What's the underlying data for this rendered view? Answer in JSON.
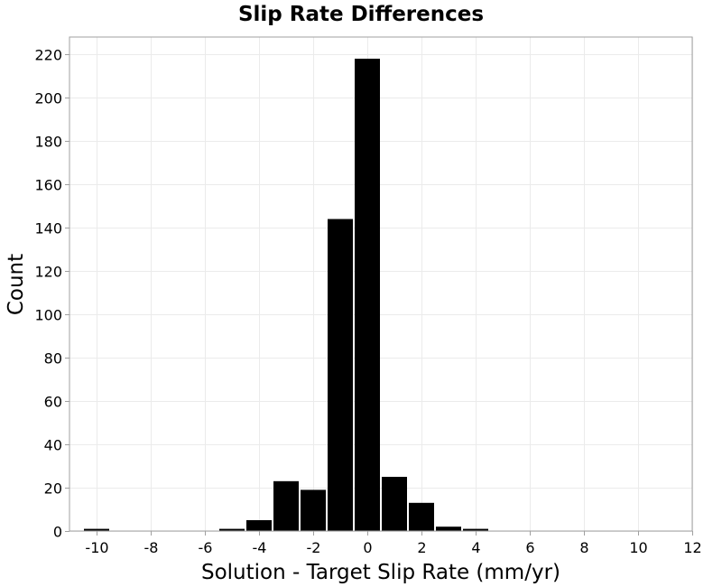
{
  "chart_data": {
    "type": "bar",
    "title": "Slip Rate Differences",
    "xlabel": "Solution - Target Slip Rate (mm/yr)",
    "ylabel": "Count",
    "xlim": [
      -11,
      12
    ],
    "ylim": [
      0,
      228
    ],
    "xticks": [
      -10,
      -8,
      -6,
      -4,
      -2,
      0,
      2,
      4,
      6,
      8,
      10,
      12
    ],
    "yticks": [
      0,
      20,
      40,
      60,
      80,
      100,
      120,
      140,
      160,
      180,
      200,
      220
    ],
    "bin_width": 1,
    "bins": [
      {
        "x": -10,
        "value": 1
      },
      {
        "x": -5,
        "value": 1
      },
      {
        "x": -4,
        "value": 5
      },
      {
        "x": -3,
        "value": 23
      },
      {
        "x": -2,
        "value": 19
      },
      {
        "x": -1,
        "value": 144
      },
      {
        "x": 0,
        "value": 218
      },
      {
        "x": 1,
        "value": 25
      },
      {
        "x": 2,
        "value": 13
      },
      {
        "x": 3,
        "value": 2
      },
      {
        "x": 4,
        "value": 1
      }
    ],
    "bar_color": "#000000",
    "grid": true
  }
}
